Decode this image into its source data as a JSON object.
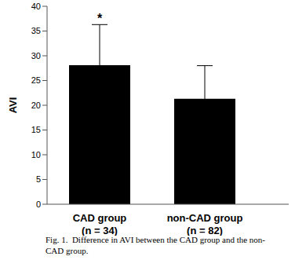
{
  "chart_data": {
    "type": "bar",
    "title": "Fig. 1.  Difference in AVI between the CAD group and the non-CAD group.",
    "categories": [
      "CAD group\n(n = 34)",
      "non-CAD group\n(n = 82)"
    ],
    "values": [
      28.1,
      21.3
    ],
    "errors": [
      8.2,
      6.7
    ],
    "color": "#000000",
    "y_label": "AVI",
    "ylim": [
      0,
      40
    ],
    "yticks": [
      0,
      5,
      10,
      15,
      20,
      25,
      30,
      35,
      40
    ],
    "grid": false,
    "annotations": [
      {
        "text": "*",
        "category": "CAD group\n(n = 34)"
      }
    ]
  }
}
